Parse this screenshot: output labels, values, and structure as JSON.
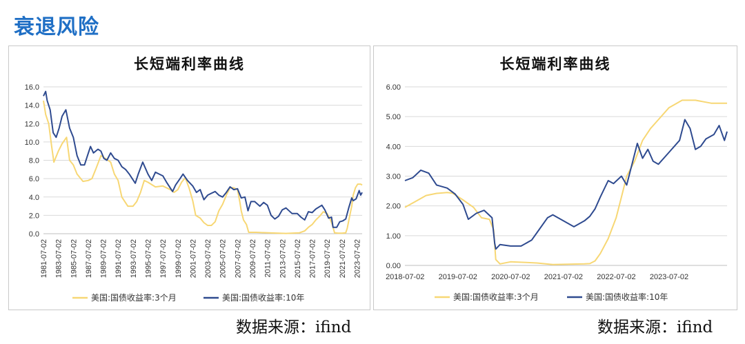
{
  "page_title": "衰退风险",
  "colors": {
    "heading": "#1f6fc5",
    "series_3m": "#f7d774",
    "series_10y": "#2e4a8f",
    "grid": "#d9d9d9"
  },
  "charts": [
    {
      "title": "长短端利率曲线",
      "source": "数据来源：ifind"
    },
    {
      "title": "长短端利率曲线",
      "source": "数据来源：ifind"
    }
  ],
  "chart_data": [
    {
      "type": "line",
      "title": "长短端利率曲线",
      "ylim": [
        0,
        16
      ],
      "y_ticks": [
        "0.0",
        "2.0",
        "4.0",
        "6.0",
        "8.0",
        "10.0",
        "12.0",
        "14.0",
        "16.0"
      ],
      "x_range": [
        1981.5,
        2024.2
      ],
      "x_ticks": [
        "1981-07-02",
        "1983-07-02",
        "1985-07-02",
        "1987-07-02",
        "1989-07-02",
        "1991-07-02",
        "1993-07-02",
        "1995-07-02",
        "1997-07-02",
        "1999-07-02",
        "2001-07-02",
        "2003-07-02",
        "2005-07-02",
        "2007-07-02",
        "2009-07-02",
        "2011-07-02",
        "2013-07-02",
        "2015-07-02",
        "2017-07-02",
        "2019-07-02",
        "2021-07-02",
        "2023-07-02"
      ],
      "grid": true,
      "legend_position": "bottom",
      "series": [
        {
          "name": "美国:国债收益率:3个月",
          "color": "#f7d774",
          "x": [
            1981.5,
            1981.8,
            1982.2,
            1982.6,
            1982.9,
            1983.5,
            1984.0,
            1984.6,
            1985.0,
            1985.5,
            1986.0,
            1986.8,
            1987.5,
            1988.0,
            1988.5,
            1989.2,
            1989.8,
            1990.5,
            1991.0,
            1991.5,
            1992.0,
            1992.8,
            1993.5,
            1994.0,
            1994.5,
            1995.0,
            1995.5,
            1996.5,
            1997.5,
            1998.5,
            1999.0,
            1999.5,
            2000.0,
            2000.5,
            2001.0,
            2001.5,
            2001.9,
            2002.5,
            2003.0,
            2003.5,
            2004.0,
            2004.5,
            2005.0,
            2005.5,
            2006.0,
            2006.5,
            2007.0,
            2007.5,
            2007.8,
            2008.0,
            2008.3,
            2008.7,
            2009.0,
            2010.0,
            2012.0,
            2014.0,
            2015.8,
            2016.5,
            2017.0,
            2017.5,
            2018.0,
            2018.5,
            2019.0,
            2019.5,
            2019.9,
            2020.2,
            2020.5,
            2021.0,
            2021.5,
            2022.0,
            2022.2,
            2022.5,
            2022.8,
            2023.0,
            2023.3,
            2023.6,
            2024.0,
            2024.2
          ],
          "y": [
            14.5,
            13.0,
            12.0,
            9.5,
            7.8,
            9.0,
            9.8,
            10.5,
            8.0,
            7.5,
            6.5,
            5.7,
            5.8,
            6.0,
            7.0,
            8.5,
            8.2,
            7.8,
            6.5,
            5.8,
            4.0,
            3.0,
            3.0,
            3.5,
            4.5,
            5.8,
            5.6,
            5.1,
            5.2,
            4.8,
            4.5,
            4.8,
            5.6,
            6.1,
            5.0,
            3.6,
            2.0,
            1.7,
            1.2,
            0.9,
            0.9,
            1.3,
            2.5,
            3.2,
            4.2,
            5.0,
            5.0,
            4.8,
            3.5,
            2.5,
            1.5,
            1.0,
            0.15,
            0.15,
            0.08,
            0.03,
            0.1,
            0.3,
            0.7,
            1.0,
            1.5,
            1.9,
            2.4,
            2.2,
            1.6,
            1.0,
            0.1,
            0.05,
            0.05,
            0.1,
            0.6,
            1.8,
            3.0,
            4.2,
            5.0,
            5.4,
            5.4,
            5.3
          ]
        },
        {
          "name": "美国:国债收益率:10年",
          "color": "#2e4a8f",
          "x": [
            1981.5,
            1981.8,
            1982.0,
            1982.4,
            1982.8,
            1983.2,
            1983.6,
            1984.0,
            1984.5,
            1985.0,
            1985.5,
            1986.0,
            1986.5,
            1987.0,
            1987.4,
            1987.8,
            1988.2,
            1988.8,
            1989.2,
            1989.6,
            1990.0,
            1990.5,
            1991.0,
            1991.5,
            1992.0,
            1992.5,
            1993.0,
            1993.8,
            1994.2,
            1994.8,
            1995.5,
            1996.0,
            1996.5,
            1997.0,
            1997.5,
            1998.0,
            1998.8,
            1999.2,
            1999.8,
            2000.2,
            2000.8,
            2001.5,
            2002.0,
            2002.5,
            2003.0,
            2003.5,
            2004.0,
            2004.5,
            2005.0,
            2005.5,
            2006.0,
            2006.5,
            2007.0,
            2007.5,
            2008.0,
            2008.5,
            2008.9,
            2009.3,
            2009.8,
            2010.5,
            2011.0,
            2011.5,
            2012.0,
            2012.5,
            2013.0,
            2013.5,
            2014.0,
            2014.8,
            2015.5,
            2016.0,
            2016.5,
            2017.0,
            2017.5,
            2018.0,
            2018.8,
            2019.2,
            2019.7,
            2020.1,
            2020.3,
            2020.8,
            2021.2,
            2021.6,
            2022.0,
            2022.4,
            2022.8,
            2023.0,
            2023.4,
            2023.8,
            2024.0,
            2024.2
          ],
          "y": [
            15.0,
            15.5,
            14.5,
            13.5,
            11.0,
            10.5,
            11.5,
            12.8,
            13.5,
            11.5,
            10.5,
            8.5,
            7.5,
            7.5,
            8.5,
            9.5,
            8.8,
            9.2,
            9.0,
            8.2,
            8.0,
            8.8,
            8.2,
            8.0,
            7.3,
            7.0,
            6.5,
            5.5,
            6.5,
            7.8,
            6.5,
            5.8,
            6.7,
            6.5,
            6.3,
            5.6,
            4.6,
            5.3,
            6.0,
            6.5,
            5.8,
            5.2,
            4.5,
            4.8,
            3.7,
            4.2,
            4.4,
            4.6,
            4.2,
            4.0,
            4.5,
            5.1,
            4.8,
            4.9,
            3.9,
            4.0,
            2.5,
            3.5,
            3.5,
            3.0,
            3.4,
            3.1,
            2.0,
            1.6,
            1.9,
            2.6,
            2.8,
            2.2,
            2.2,
            1.8,
            1.5,
            2.4,
            2.3,
            2.7,
            3.1,
            2.6,
            1.7,
            1.8,
            0.7,
            0.7,
            1.3,
            1.4,
            1.6,
            2.8,
            3.9,
            3.6,
            3.8,
            4.7,
            4.2,
            4.5
          ]
        }
      ]
    },
    {
      "type": "line",
      "title": "长短端利率曲线",
      "ylim": [
        0,
        6
      ],
      "y_ticks": [
        "0.00",
        "1.00",
        "2.00",
        "3.00",
        "4.00",
        "5.00",
        "6.00"
      ],
      "x_range": [
        2018.5,
        2024.6
      ],
      "x_ticks": [
        "2018-07-02",
        "2019-07-02",
        "2020-07-02",
        "2021-07-02",
        "2022-07-02",
        "2023-07-02"
      ],
      "grid": true,
      "legend_position": "bottom",
      "series": [
        {
          "name": "美国:国债收益率:3个月",
          "color": "#f7d774",
          "x": [
            2018.5,
            2018.7,
            2018.9,
            2019.1,
            2019.3,
            2019.4,
            2019.6,
            2019.8,
            2019.95,
            2020.1,
            2020.18,
            2020.22,
            2020.3,
            2020.5,
            2020.8,
            2021.0,
            2021.3,
            2021.6,
            2021.9,
            2022.0,
            2022.1,
            2022.2,
            2022.35,
            2022.5,
            2022.6,
            2022.7,
            2022.85,
            2023.0,
            2023.15,
            2023.3,
            2023.5,
            2023.75,
            2024.0,
            2024.3,
            2024.6
          ],
          "y": [
            1.95,
            2.15,
            2.35,
            2.42,
            2.45,
            2.43,
            2.2,
            1.95,
            1.6,
            1.55,
            1.2,
            0.2,
            0.05,
            0.12,
            0.1,
            0.08,
            0.03,
            0.04,
            0.05,
            0.06,
            0.15,
            0.4,
            0.9,
            1.6,
            2.3,
            3.0,
            3.5,
            4.2,
            4.6,
            4.9,
            5.3,
            5.55,
            5.55,
            5.45,
            5.45
          ]
        },
        {
          "name": "美国:国债收益率:10年",
          "color": "#2e4a8f",
          "x": [
            2018.5,
            2018.65,
            2018.8,
            2018.95,
            2019.1,
            2019.3,
            2019.45,
            2019.6,
            2019.7,
            2019.85,
            2020.0,
            2020.15,
            2020.2,
            2020.22,
            2020.3,
            2020.5,
            2020.7,
            2020.9,
            2021.0,
            2021.2,
            2021.3,
            2021.5,
            2021.7,
            2021.9,
            2022.0,
            2022.1,
            2022.2,
            2022.35,
            2022.45,
            2022.6,
            2022.7,
            2022.8,
            2022.9,
            2023.0,
            2023.1,
            2023.2,
            2023.3,
            2023.5,
            2023.7,
            2023.8,
            2023.9,
            2024.0,
            2024.1,
            2024.2,
            2024.35,
            2024.45,
            2024.55,
            2024.6
          ],
          "y": [
            2.85,
            2.95,
            3.2,
            3.1,
            2.7,
            2.6,
            2.4,
            2.05,
            1.55,
            1.75,
            1.85,
            1.6,
            0.75,
            0.55,
            0.7,
            0.65,
            0.65,
            0.85,
            1.1,
            1.6,
            1.7,
            1.5,
            1.3,
            1.5,
            1.65,
            1.9,
            2.3,
            2.85,
            2.75,
            3.0,
            2.7,
            3.4,
            4.1,
            3.6,
            3.9,
            3.5,
            3.4,
            3.8,
            4.2,
            4.9,
            4.6,
            3.9,
            4.0,
            4.25,
            4.4,
            4.7,
            4.2,
            4.5
          ]
        }
      ]
    }
  ]
}
